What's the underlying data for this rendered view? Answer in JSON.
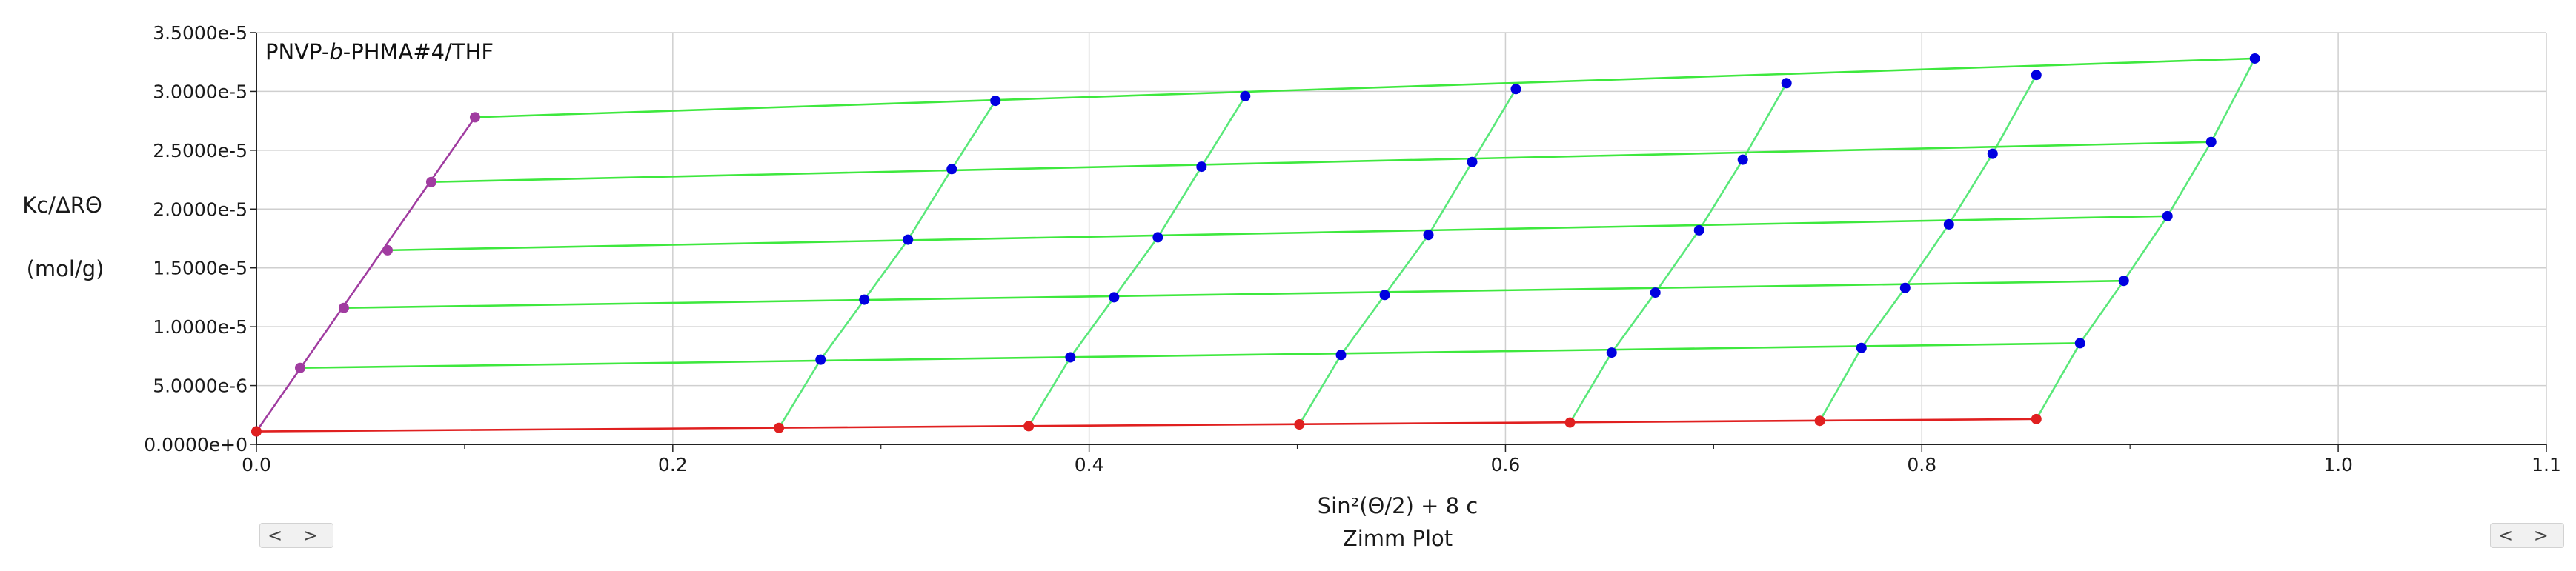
{
  "chart_data": {
    "type": "scatter",
    "subtitle": "Zimm Plot",
    "xlabel": "Sin²(Θ/2) + 8 c",
    "ylabel_line1": "Kc/ΔRΘ",
    "ylabel_line2": "(mol/g)",
    "xlim": [
      0.0,
      1.1
    ],
    "ylim": [
      0.0,
      3.5e-05
    ],
    "x_ticks": [
      "0.0",
      "0.2",
      "0.4",
      "0.6",
      "0.8",
      "1.0",
      "1.1"
    ],
    "y_ticks": [
      "0.0000e+0",
      "5.0000e-6",
      "1.0000e-5",
      "1.5000e-5",
      "2.0000e-5",
      "2.5000e-5",
      "3.0000e-5",
      "3.5000e-5"
    ],
    "grid": true,
    "series": [
      {
        "color": "#a03ca0",
        "points": [
          [
            0.0,
            1.1e-06
          ],
          [
            0.021,
            6.5e-06
          ],
          [
            0.042,
            1.16e-05
          ],
          [
            0.063,
            1.65e-05
          ],
          [
            0.084,
            2.23e-05
          ],
          [
            0.105,
            2.78e-05
          ]
        ]
      },
      {
        "color": "#e02020",
        "points": [
          [
            0.0,
            1.1e-06
          ],
          [
            0.251,
            1.4e-06
          ],
          [
            0.371,
            1.55e-06
          ],
          [
            0.501,
            1.7e-06
          ],
          [
            0.631,
            1.85e-06
          ],
          [
            0.751,
            2e-06
          ],
          [
            0.855,
            2.15e-06
          ]
        ]
      },
      {
        "color": "#0000e0",
        "points": [
          [
            0.271,
            7.2e-06
          ],
          [
            0.292,
            1.23e-05
          ],
          [
            0.313,
            1.74e-05
          ],
          [
            0.334,
            2.34e-05
          ],
          [
            0.355,
            2.92e-05
          ],
          [
            0.391,
            7.4e-06
          ],
          [
            0.412,
            1.25e-05
          ],
          [
            0.433,
            1.76e-05
          ],
          [
            0.454,
            2.36e-05
          ],
          [
            0.475,
            2.96e-05
          ],
          [
            0.521,
            7.6e-06
          ],
          [
            0.542,
            1.27e-05
          ],
          [
            0.563,
            1.78e-05
          ],
          [
            0.584,
            2.4e-05
          ],
          [
            0.605,
            3.02e-05
          ],
          [
            0.651,
            7.8e-06
          ],
          [
            0.672,
            1.29e-05
          ],
          [
            0.693,
            1.82e-05
          ],
          [
            0.714,
            2.42e-05
          ],
          [
            0.735,
            3.07e-05
          ],
          [
            0.771,
            8.2e-06
          ],
          [
            0.792,
            1.33e-05
          ],
          [
            0.813,
            1.87e-05
          ],
          [
            0.834,
            2.47e-05
          ],
          [
            0.855,
            3.14e-05
          ],
          [
            0.876,
            8.6e-06
          ],
          [
            0.897,
            1.39e-05
          ],
          [
            0.918,
            1.94e-05
          ],
          [
            0.939,
            2.57e-05
          ],
          [
            0.96,
            3.28e-05
          ]
        ]
      }
    ],
    "angle_lines": [
      {
        "color": "#5ae87a",
        "points": [
          [
            0.251,
            1.4e-06
          ],
          [
            0.271,
            7.2e-06
          ],
          [
            0.292,
            1.23e-05
          ],
          [
            0.313,
            1.74e-05
          ],
          [
            0.334,
            2.34e-05
          ],
          [
            0.355,
            2.92e-05
          ]
        ]
      },
      {
        "color": "#5ae87a",
        "points": [
          [
            0.371,
            1.55e-06
          ],
          [
            0.391,
            7.4e-06
          ],
          [
            0.412,
            1.25e-05
          ],
          [
            0.433,
            1.76e-05
          ],
          [
            0.454,
            2.36e-05
          ],
          [
            0.475,
            2.96e-05
          ]
        ]
      },
      {
        "color": "#5ae87a",
        "points": [
          [
            0.501,
            1.7e-06
          ],
          [
            0.521,
            7.6e-06
          ],
          [
            0.542,
            1.27e-05
          ],
          [
            0.563,
            1.78e-05
          ],
          [
            0.584,
            2.4e-05
          ],
          [
            0.605,
            3.02e-05
          ]
        ]
      },
      {
        "color": "#5ae87a",
        "points": [
          [
            0.631,
            1.85e-06
          ],
          [
            0.651,
            7.8e-06
          ],
          [
            0.672,
            1.29e-05
          ],
          [
            0.693,
            1.82e-05
          ],
          [
            0.714,
            2.42e-05
          ],
          [
            0.735,
            3.07e-05
          ]
        ]
      },
      {
        "color": "#5ae87a",
        "points": [
          [
            0.751,
            2e-06
          ],
          [
            0.771,
            8.2e-06
          ],
          [
            0.792,
            1.33e-05
          ],
          [
            0.813,
            1.87e-05
          ],
          [
            0.834,
            2.47e-05
          ],
          [
            0.855,
            3.14e-05
          ]
        ]
      },
      {
        "color": "#5ae87a",
        "points": [
          [
            0.855,
            2.15e-06
          ],
          [
            0.876,
            8.6e-06
          ],
          [
            0.897,
            1.39e-05
          ],
          [
            0.918,
            1.94e-05
          ],
          [
            0.939,
            2.57e-05
          ],
          [
            0.96,
            3.28e-05
          ]
        ]
      }
    ],
    "conc_lines": [
      {
        "color": "#3ee83e",
        "points": [
          [
            0.021,
            6.5e-06
          ],
          [
            0.876,
            8.6e-06
          ]
        ]
      },
      {
        "color": "#3ee83e",
        "points": [
          [
            0.042,
            1.16e-05
          ],
          [
            0.897,
            1.39e-05
          ]
        ]
      },
      {
        "color": "#3ee83e",
        "points": [
          [
            0.063,
            1.65e-05
          ],
          [
            0.918,
            1.94e-05
          ]
        ]
      },
      {
        "color": "#3ee83e",
        "points": [
          [
            0.084,
            2.23e-05
          ],
          [
            0.939,
            2.57e-05
          ]
        ]
      },
      {
        "color": "#3ee83e",
        "points": [
          [
            0.105,
            2.78e-05
          ],
          [
            0.96,
            3.28e-05
          ]
        ]
      }
    ],
    "extrapolation_lines": [
      {
        "color": "#a03ca0",
        "points": [
          [
            0.0,
            1.1e-06
          ],
          [
            0.105,
            2.78e-05
          ]
        ]
      },
      {
        "color": "#e02020",
        "points": [
          [
            0.0,
            1.1e-06
          ],
          [
            0.855,
            2.15e-06
          ]
        ]
      }
    ]
  },
  "annotation": {
    "title_prefix": "PNVP-",
    "title_italic": "b",
    "title_suffix": "-PHMA#4/THF"
  },
  "nav": {
    "left_label": "< >",
    "right_label": "< >"
  },
  "colors": {
    "grid": "#cfcfcf",
    "axis": "#222222"
  }
}
